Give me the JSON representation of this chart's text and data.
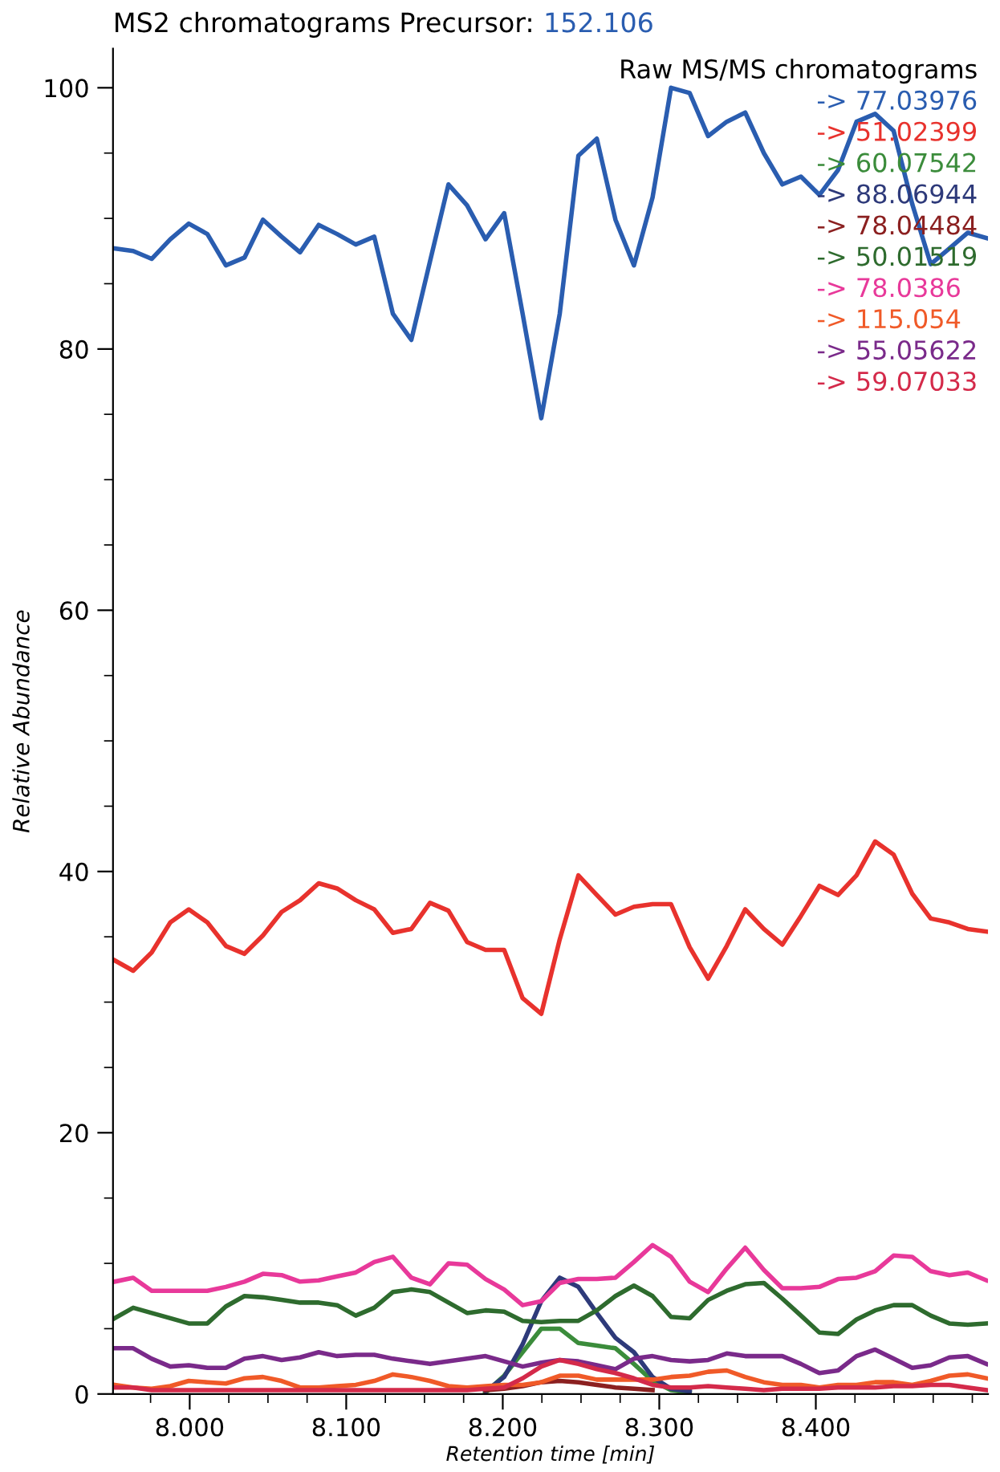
{
  "chart_data": {
    "type": "line",
    "title": "MS2 chromatograms Precursor:",
    "subtitle": "152.106",
    "xlabel": "Retention time [min]",
    "ylabel": "Relative Abundance",
    "legend_title": "Raw MS/MS chromatograms",
    "legend": "top right",
    "grid": false,
    "x": [
      7.952,
      7.9639,
      7.9757,
      7.9876,
      7.9994,
      8.0113,
      8.0231,
      8.035,
      8.0468,
      8.0587,
      8.0705,
      8.0824,
      8.0942,
      8.1061,
      8.1179,
      8.1298,
      8.1416,
      8.1535,
      8.1653,
      8.1772,
      8.189,
      8.2009,
      8.2127,
      8.2246,
      8.2364,
      8.2483,
      8.2601,
      8.272,
      8.2838,
      8.2957,
      8.3075,
      8.3194,
      8.3312,
      8.3431,
      8.3549,
      8.3668,
      8.3786,
      8.3905,
      8.4023,
      8.4142,
      8.426,
      8.4379,
      8.4497,
      8.4616,
      8.4734,
      8.4853,
      8.4971,
      8.509
    ],
    "xlim": [
      7.951,
      8.51
    ],
    "xticks": [
      {
        "value": 8.0,
        "label": "8.000"
      },
      {
        "value": 8.1,
        "label": "8.100"
      },
      {
        "value": 8.2,
        "label": "8.200"
      },
      {
        "value": 8.3,
        "label": "8.300"
      },
      {
        "value": 8.4,
        "label": "8.400"
      }
    ],
    "ylim": [
      0,
      103
    ],
    "yticks": [
      0,
      20,
      40,
      60,
      80,
      100
    ],
    "series": [
      {
        "name": "-> 77.03976",
        "color": "#2a5db0",
        "values": [
          87.7,
          87.5,
          86.9,
          88.4,
          89.6,
          88.8,
          86.4,
          87.0,
          89.9,
          88.6,
          87.4,
          89.5,
          88.8,
          88.0,
          88.6,
          82.7,
          80.7,
          86.7,
          92.6,
          91.0,
          88.4,
          90.4,
          82.7,
          74.7,
          82.7,
          94.8,
          96.1,
          89.9,
          86.4,
          91.6,
          100,
          99.6,
          96.3,
          97.4,
          98.1,
          95.0,
          92.6,
          93.2,
          91.8,
          93.7,
          97.4,
          98.0,
          96.7,
          91.1,
          86.5,
          87.7,
          88.9,
          88.5
        ]
      },
      {
        "name": "-> 51.02399",
        "color": "#e8322d",
        "values": [
          33.2,
          32.4,
          33.8,
          36.1,
          37.1,
          36.1,
          34.3,
          33.7,
          35.1,
          36.9,
          37.8,
          39.1,
          38.7,
          37.8,
          37.1,
          35.3,
          35.6,
          37.6,
          37.0,
          34.6,
          34.0,
          34.0,
          30.3,
          29.1,
          34.8,
          39.7,
          38.2,
          36.7,
          37.3,
          37.5,
          37.5,
          34.2,
          31.8,
          34.3,
          37.1,
          35.6,
          34.4,
          36.6,
          38.9,
          38.2,
          39.7,
          42.3,
          41.3,
          38.3,
          36.4,
          36.1,
          35.6,
          35.4
        ]
      },
      {
        "name": "-> 60.07542",
        "color": "#3b8c3b",
        "values": [
          null,
          null,
          null,
          null,
          null,
          null,
          null,
          null,
          null,
          null,
          null,
          null,
          null,
          null,
          null,
          null,
          null,
          null,
          null,
          null,
          0.1,
          1.4,
          3.2,
          5.0,
          5.0,
          3.9,
          3.7,
          3.5,
          2.3,
          1.0,
          0.3,
          0.1,
          null,
          null,
          null,
          null,
          null,
          null,
          null,
          null,
          null,
          null,
          null,
          null,
          null,
          null,
          null,
          null
        ]
      },
      {
        "name": "-> 88.06944",
        "color": "#2e3a7a",
        "values": [
          null,
          null,
          null,
          null,
          null,
          null,
          null,
          null,
          null,
          null,
          null,
          null,
          null,
          null,
          null,
          null,
          null,
          null,
          null,
          null,
          0.2,
          1.3,
          3.8,
          7.1,
          8.9,
          8.2,
          6.2,
          4.3,
          3.2,
          1.3,
          0.4,
          0.2,
          null,
          null,
          null,
          null,
          null,
          null,
          null,
          null,
          null,
          null,
          null,
          null,
          null,
          null,
          null,
          null
        ]
      },
      {
        "name": "-> 78.04484",
        "color": "#8b2020",
        "values": [
          null,
          null,
          null,
          null,
          null,
          null,
          null,
          null,
          null,
          null,
          null,
          null,
          null,
          null,
          null,
          null,
          null,
          null,
          null,
          null,
          0.3,
          0.4,
          0.6,
          0.9,
          1.0,
          0.9,
          0.7,
          0.5,
          0.4,
          0.3,
          null,
          null,
          null,
          null,
          null,
          null,
          null,
          null,
          null,
          null,
          null,
          null,
          null,
          null,
          null,
          null,
          null,
          null
        ]
      },
      {
        "name": "-> 50.01519",
        "color": "#2e6b2e",
        "values": [
          5.8,
          6.6,
          6.2,
          5.8,
          5.4,
          5.4,
          6.7,
          7.5,
          7.4,
          7.2,
          7.0,
          7.0,
          6.8,
          6.0,
          6.6,
          7.8,
          8.0,
          7.8,
          7.0,
          6.2,
          6.4,
          6.3,
          5.6,
          5.5,
          5.6,
          5.6,
          6.4,
          7.5,
          8.3,
          7.5,
          5.9,
          5.8,
          7.2,
          7.9,
          8.4,
          8.5,
          7.3,
          6.0,
          4.7,
          4.6,
          5.7,
          6.4,
          6.8,
          6.8,
          6.0,
          5.4,
          5.3,
          5.4
        ]
      },
      {
        "name": "-> 78.0386",
        "color": "#e8399a",
        "values": [
          8.6,
          8.9,
          7.9,
          7.9,
          7.9,
          7.9,
          8.2,
          8.6,
          9.2,
          9.1,
          8.6,
          8.7,
          9.0,
          9.3,
          10.1,
          10.5,
          8.9,
          8.4,
          10.0,
          9.9,
          8.8,
          8.0,
          6.8,
          7.1,
          8.5,
          8.8,
          8.8,
          8.9,
          10.1,
          11.4,
          10.5,
          8.6,
          7.8,
          9.6,
          11.2,
          9.5,
          8.1,
          8.1,
          8.2,
          8.8,
          8.9,
          9.4,
          10.6,
          10.5,
          9.4,
          9.1,
          9.3,
          8.7
        ]
      },
      {
        "name": "-> 115.054",
        "color": "#f05a28",
        "values": [
          0.7,
          0.5,
          0.4,
          0.6,
          1.0,
          0.9,
          0.8,
          1.2,
          1.3,
          1.0,
          0.5,
          0.5,
          0.6,
          0.7,
          1.0,
          1.5,
          1.3,
          1.0,
          0.6,
          0.5,
          0.6,
          0.7,
          0.7,
          0.9,
          1.4,
          1.4,
          1.1,
          1.1,
          1.1,
          1.1,
          1.3,
          1.4,
          1.7,
          1.8,
          1.3,
          0.9,
          0.7,
          0.7,
          0.5,
          0.7,
          0.7,
          0.9,
          0.9,
          0.7,
          1.0,
          1.4,
          1.5,
          1.2
        ]
      },
      {
        "name": "-> 55.05622",
        "color": "#7a2a8a",
        "values": [
          3.5,
          3.5,
          2.7,
          2.1,
          2.2,
          2.0,
          2.0,
          2.7,
          2.9,
          2.6,
          2.8,
          3.2,
          2.9,
          3.0,
          3.0,
          2.7,
          2.5,
          2.3,
          2.5,
          2.7,
          2.9,
          2.5,
          2.1,
          2.4,
          2.6,
          2.5,
          2.2,
          1.9,
          2.7,
          2.9,
          2.6,
          2.5,
          2.6,
          3.1,
          2.9,
          2.9,
          2.9,
          2.3,
          1.6,
          1.8,
          2.9,
          3.4,
          2.7,
          2.0,
          2.2,
          2.8,
          2.9,
          2.3
        ]
      },
      {
        "name": "-> 59.07033",
        "color": "#d42a4a",
        "values": [
          0.5,
          0.5,
          0.3,
          0.3,
          0.3,
          0.3,
          0.3,
          0.3,
          0.3,
          0.3,
          0.3,
          0.3,
          0.3,
          0.3,
          0.3,
          0.3,
          0.3,
          0.3,
          0.3,
          0.3,
          0.4,
          0.5,
          1.2,
          2.1,
          2.6,
          2.3,
          1.9,
          1.6,
          1.2,
          0.7,
          0.5,
          0.5,
          0.6,
          0.5,
          0.4,
          0.3,
          0.4,
          0.4,
          0.4,
          0.5,
          0.5,
          0.5,
          0.6,
          0.6,
          0.7,
          0.7,
          0.5,
          0.3
        ]
      }
    ]
  }
}
